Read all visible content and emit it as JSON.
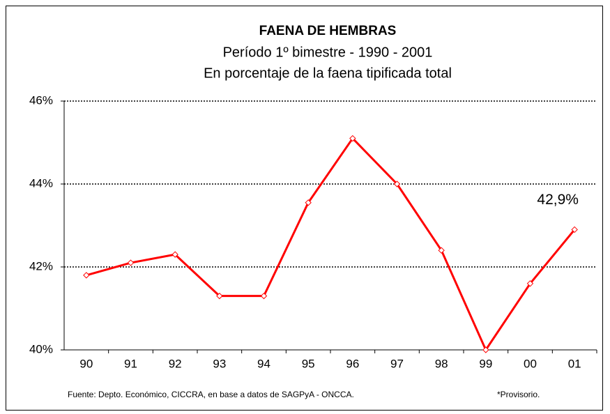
{
  "chart_data": {
    "type": "line",
    "title": "FAENA DE HEMBRAS",
    "subtitle": [
      "Período 1º bimestre - 1990 - 2001",
      "En porcentaje de la faena tipificada total"
    ],
    "categories": [
      "90",
      "91",
      "92",
      "93",
      "94",
      "95",
      "96",
      "97",
      "98",
      "99",
      "00",
      "01"
    ],
    "series": [
      {
        "name": "Faena de hembras",
        "color": "#ff0000",
        "values": [
          41.8,
          42.1,
          42.3,
          41.3,
          41.3,
          43.55,
          45.1,
          44.0,
          42.4,
          40.0,
          41.6,
          42.9
        ],
        "value_labels": [
          null,
          null,
          null,
          null,
          null,
          null,
          null,
          null,
          null,
          null,
          null,
          "42,9%"
        ]
      }
    ],
    "ylim": [
      40,
      46
    ],
    "yticks": [
      {
        "value": 40,
        "label": "40%"
      },
      {
        "value": 42,
        "label": "42%"
      },
      {
        "value": 44,
        "label": "44%"
      },
      {
        "value": 46,
        "label": "46%"
      }
    ],
    "grid": true,
    "footnotes": [
      "Fuente: Depto. Económico, CICCRA, en base a datos de SAGPyA - ONCCA.",
      "*Provisorio."
    ]
  }
}
